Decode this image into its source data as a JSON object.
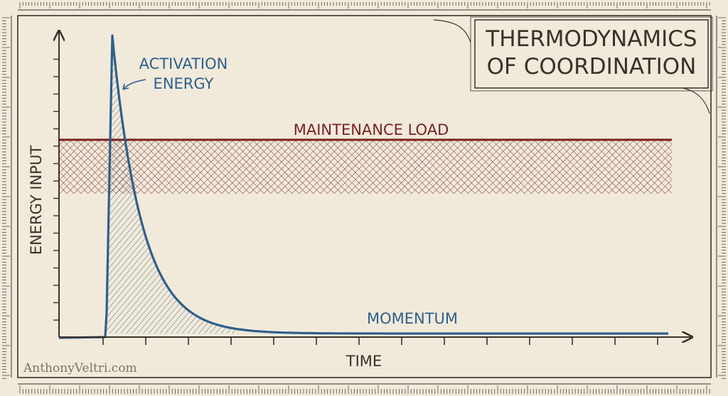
{
  "title": {
    "line1": "THERMODYNAMICS",
    "line2": "OF COORDINATION"
  },
  "axes": {
    "y_label": "ENERGY INPUT",
    "x_label": "TIME"
  },
  "annotations": {
    "activation_line1": "ACTIVATION",
    "activation_line2": "ENERGY",
    "maintenance": "MAINTENANCE LOAD",
    "momentum": "MOMENTUM"
  },
  "watermark": "AnthonyVeltri.com",
  "colors": {
    "paper": "#f1eadb",
    "ink": "#3a3128",
    "activation_curve": "#2f5f8a",
    "maintenance_load": "#7a1f1f"
  }
}
